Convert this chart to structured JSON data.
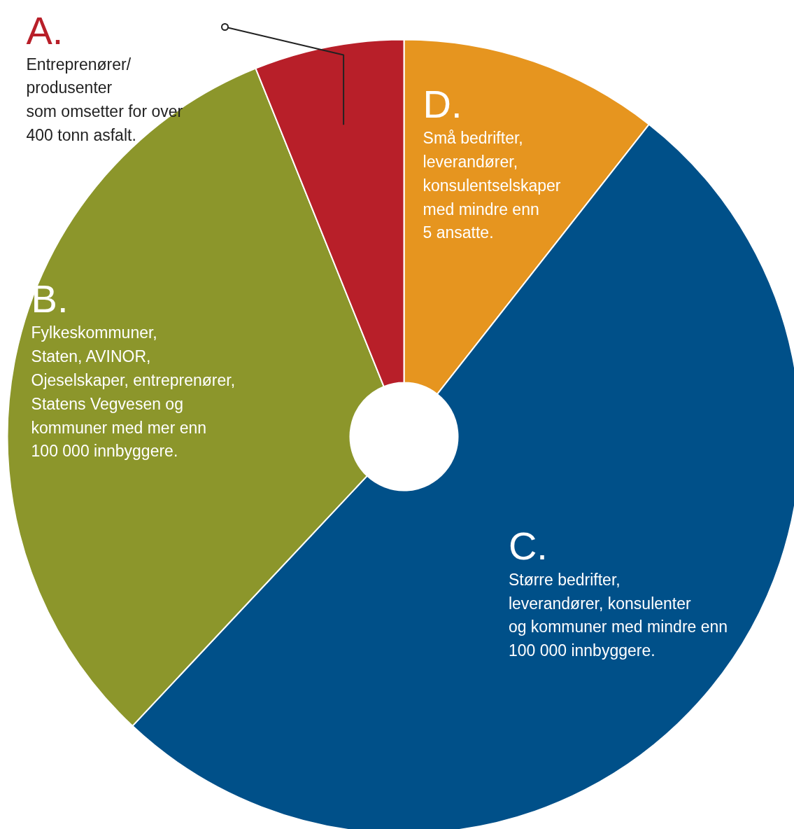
{
  "chart_data": {
    "type": "donut",
    "categories": [
      "D.\nSmå bedrifter,\nleverandører,\nkonsulentselskaper\nmed mindre enn\n5 ansatte.",
      "C.\nStørre bedrifter,\nleverandører, konsulenter\nog kommuner med mindre enn\n100 000 innbyggere.",
      "B.\nFylkeskommuner,\nStaten, AVINOR,\nOjeselskaper, entreprenører,\nStatens Vegvesen og\nkommuner med mer enn\n100 000 innbyggere.",
      "A.\nEntreprenører/\nprodusenter\nsom omsetter for over\n400 tonn asfalt."
    ],
    "values": [
      10.6,
      51.4,
      31.9,
      6.1
    ],
    "colors": [
      "#e6951f",
      "#005089",
      "#8c962b",
      "#b81f29"
    ]
  }
}
